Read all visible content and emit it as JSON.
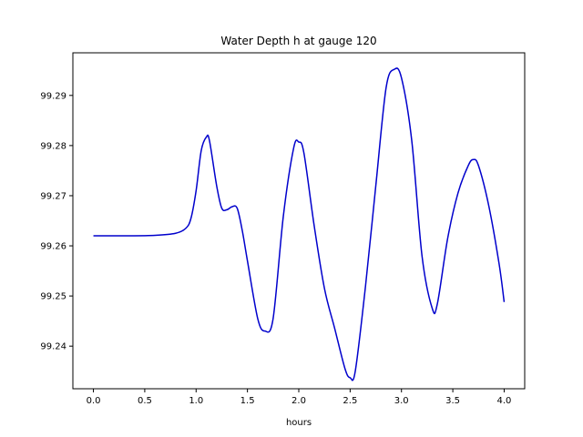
{
  "chart_data": {
    "type": "line",
    "title": "Water Depth h at gauge 120",
    "xlabel": "hours",
    "ylabel": "",
    "xlim": [
      -0.2,
      4.2
    ],
    "ylim": [
      99.2315,
      99.2985
    ],
    "xticks": [
      0.0,
      0.5,
      1.0,
      1.5,
      2.0,
      2.5,
      3.0,
      3.5,
      4.0
    ],
    "xtick_labels": [
      "0.0",
      "0.5",
      "1.0",
      "1.5",
      "2.0",
      "2.5",
      "3.0",
      "3.5",
      "4.0"
    ],
    "yticks": [
      99.24,
      99.25,
      99.26,
      99.27,
      99.28,
      99.29
    ],
    "ytick_labels": [
      "99.24",
      "99.25",
      "99.26",
      "99.27",
      "99.28",
      "99.29"
    ],
    "grid": false,
    "line_color": "#0000cc",
    "series": [
      {
        "x": [
          0.0,
          0.3,
          0.6,
          0.8,
          0.9,
          0.95,
          1.0,
          1.05,
          1.1,
          1.13,
          1.2,
          1.25,
          1.3,
          1.35,
          1.4,
          1.45,
          1.5,
          1.6,
          1.67,
          1.75,
          1.85,
          1.95,
          2.0,
          2.05,
          2.15,
          2.25,
          2.35,
          2.45,
          2.5,
          2.55,
          2.65,
          2.75,
          2.85,
          2.93,
          3.0,
          3.1,
          3.2,
          3.3,
          3.35,
          3.45,
          3.55,
          3.65,
          3.7,
          3.75,
          3.85,
          3.95,
          4.0
        ],
        "y": [
          99.262,
          99.262,
          99.2621,
          99.2625,
          99.2635,
          99.2655,
          99.271,
          99.279,
          99.2817,
          99.281,
          99.272,
          99.2675,
          99.2672,
          99.2678,
          99.2675,
          99.263,
          99.257,
          99.2455,
          99.243,
          99.2455,
          99.266,
          99.2795,
          99.2807,
          99.2785,
          99.264,
          99.2515,
          99.2435,
          99.2355,
          99.2337,
          99.235,
          99.252,
          99.272,
          99.2915,
          99.2952,
          99.2935,
          99.281,
          99.258,
          99.2475,
          99.2485,
          99.2615,
          99.2705,
          99.276,
          99.2772,
          99.276,
          99.268,
          99.2565,
          99.2488
        ]
      }
    ]
  }
}
